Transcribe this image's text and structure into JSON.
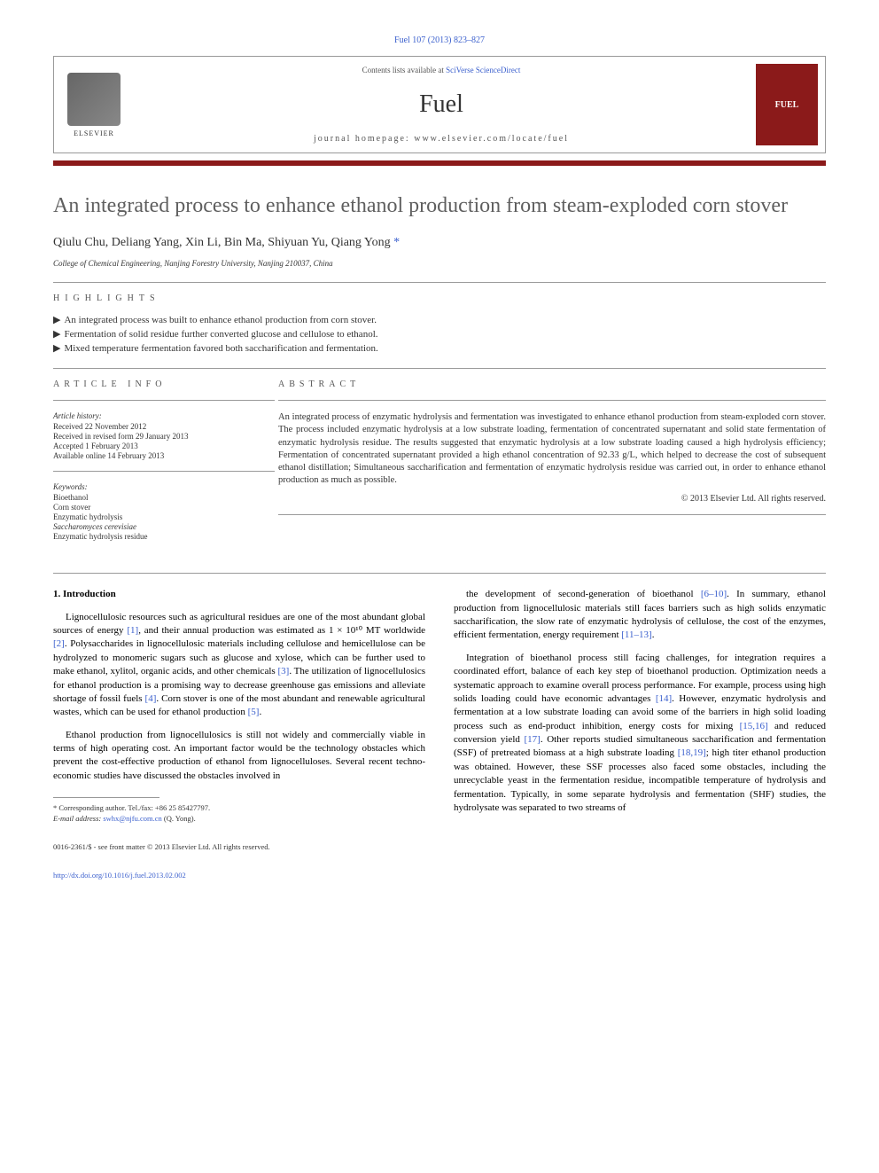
{
  "citation": "Fuel 107 (2013) 823–827",
  "header": {
    "contents_prefix": "Contents lists available at ",
    "contents_link": "SciVerse ScienceDirect",
    "journal": "Fuel",
    "homepage_prefix": "journal homepage: ",
    "homepage_url": "www.elsevier.com/locate/fuel",
    "publisher": "ELSEVIER",
    "cover_label": "FUEL"
  },
  "title": "An integrated process to enhance ethanol production from steam-exploded corn stover",
  "authors": "Qiulu Chu, Deliang Yang, Xin Li, Bin Ma, Shiyuan Yu, Qiang Yong",
  "corr_marker": "*",
  "affiliation": "College of Chemical Engineering, Nanjing Forestry University, Nanjing 210037, China",
  "highlights": {
    "label": "HIGHLIGHTS",
    "items": [
      "An integrated process was built to enhance ethanol production from corn stover.",
      "Fermentation of solid residue further converted glucose and cellulose to ethanol.",
      "Mixed temperature fermentation favored both saccharification and fermentation."
    ]
  },
  "article_info": {
    "label": "ARTICLE INFO",
    "history_head": "Article history:",
    "history": [
      "Received 22 November 2012",
      "Received in revised form 29 January 2013",
      "Accepted 1 February 2013",
      "Available online 14 February 2013"
    ],
    "keywords_head": "Keywords:",
    "keywords": [
      "Bioethanol",
      "Corn stover",
      "Enzymatic hydrolysis",
      "Saccharomyces cerevisiae",
      "Enzymatic hydrolysis residue"
    ]
  },
  "abstract": {
    "label": "ABSTRACT",
    "text": "An integrated process of enzymatic hydrolysis and fermentation was investigated to enhance ethanol production from steam-exploded corn stover. The process included enzymatic hydrolysis at a low substrate loading, fermentation of concentrated supernatant and solid state fermentation of enzymatic hydrolysis residue. The results suggested that enzymatic hydrolysis at a low substrate loading caused a high hydrolysis efficiency; Fermentation of concentrated supernatant provided a high ethanol concentration of 92.33 g/L, which helped to decrease the cost of subsequent ethanol distillation; Simultaneous saccharification and fermentation of enzymatic hydrolysis residue was carried out, in order to enhance ethanol production as much as possible.",
    "copyright": "© 2013 Elsevier Ltd. All rights reserved."
  },
  "body": {
    "section_head": "1. Introduction",
    "col1_p1": "Lignocellulosic resources such as agricultural residues are one of the most abundant global sources of energy [1], and their annual production was estimated as 1 × 10¹⁰ MT worldwide [2]. Polysaccharides in lignocellulosic materials including cellulose and hemicellulose can be hydrolyzed to monomeric sugars such as glucose and xylose, which can be further used to make ethanol, xylitol, organic acids, and other chemicals [3]. The utilization of lignocellulosics for ethanol production is a promising way to decrease greenhouse gas emissions and alleviate shortage of fossil fuels [4]. Corn stover is one of the most abundant and renewable agricultural wastes, which can be used for ethanol production [5].",
    "col1_p2": "Ethanol production from lignocellulosics is still not widely and commercially viable in terms of high operating cost. An important factor would be the technology obstacles which prevent the cost-effective production of ethanol from lignocelluloses. Several recent techno-economic studies have discussed the obstacles involved in",
    "col2_p1": "the development of second-generation of bioethanol [6–10]. In summary, ethanol production from lignocellulosic materials still faces barriers such as high solids enzymatic saccharification, the slow rate of enzymatic hydrolysis of cellulose, the cost of the enzymes, efficient fermentation, energy requirement [11–13].",
    "col2_p2": "Integration of bioethanol process still facing challenges, for integration requires a coordinated effort, balance of each key step of bioethanol production. Optimization needs a systematic approach to examine overall process performance. For example, process using high solids loading could have economic advantages [14]. However, enzymatic hydrolysis and fermentation at a low substrate loading can avoid some of the barriers in high solid loading process such as end-product inhibition, energy costs for mixing [15,16] and reduced conversion yield [17]. Other reports studied simultaneous saccharification and fermentation (SSF) of pretreated biomass at a high substrate loading [18,19]; high titer ethanol production was obtained. However, these SSF processes also faced some obstacles, including the unrecyclable yeast in the fermentation residue, incompatible temperature of hydrolysis and fermentation. Typically, in some separate hydrolysis and fermentation (SHF) studies, the hydrolysate was separated to two streams of"
  },
  "footnote": {
    "corr": "* Corresponding author. Tel./fax: +86 25 85427797.",
    "email_label": "E-mail address: ",
    "email": "swhx@njfu.com.cn",
    "email_suffix": " (Q. Yong)."
  },
  "bottom": {
    "issn": "0016-2361/$ - see front matter © 2013 Elsevier Ltd. All rights reserved.",
    "doi": "http://dx.doi.org/10.1016/j.fuel.2013.02.002"
  },
  "colors": {
    "link": "#3a5fcd",
    "redbar": "#8b1a1a",
    "title": "#5f5f5f"
  }
}
